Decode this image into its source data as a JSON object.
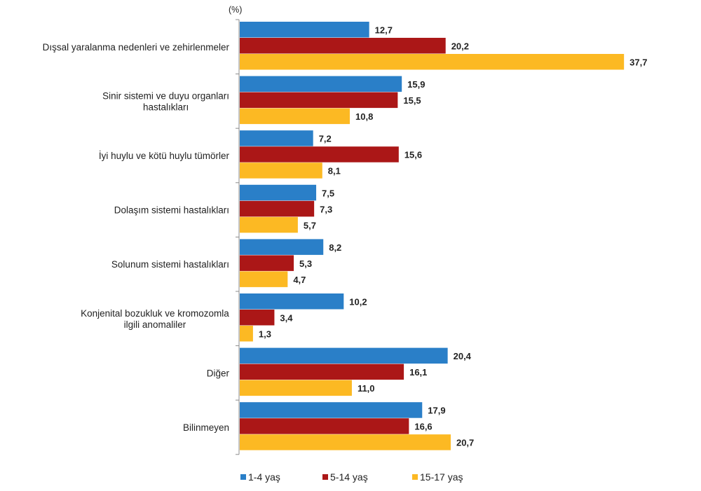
{
  "chart_data": {
    "type": "bar",
    "orientation": "horizontal",
    "title": "",
    "unit_label": "(%)",
    "xlabel": "",
    "ylabel": "",
    "xlim": [
      0,
      40
    ],
    "grid": false,
    "legend_position": "bottom",
    "categories": [
      [
        "Dışsal yaralanma nedenleri ve zehirlenmeler"
      ],
      [
        "Sinir sistemi ve duyu organları",
        "hastalıkları"
      ],
      [
        "İyi huylu ve kötü huylu tümörler"
      ],
      [
        "Dolaşım sistemi hastalıkları"
      ],
      [
        "Solunum sistemi hastalıkları"
      ],
      [
        "Konjenital bozukluk ve kromozomla",
        "ilgili anomaliler"
      ],
      [
        "Diğer"
      ],
      [
        "Bilinmeyen"
      ]
    ],
    "series": [
      {
        "name": "1-4 yaş",
        "color": "#2a7fc8",
        "values": [
          12.7,
          15.9,
          7.2,
          7.5,
          8.2,
          10.2,
          20.4,
          17.9
        ],
        "labels": [
          "12,7",
          "15,9",
          "7,2",
          "7,5",
          "8,2",
          "10,2",
          "20,4",
          "17,9"
        ]
      },
      {
        "name": "5-14 yaş",
        "color": "#ab1717",
        "values": [
          20.2,
          15.5,
          15.6,
          7.3,
          5.3,
          3.4,
          16.1,
          16.6
        ],
        "labels": [
          "20,2",
          "15,5",
          "15,6",
          "7,3",
          "5,3",
          "3,4",
          "16,1",
          "16,6"
        ]
      },
      {
        "name": "15-17 yaş",
        "color": "#fcb923",
        "values": [
          37.7,
          10.8,
          8.1,
          5.7,
          4.7,
          1.3,
          11.0,
          20.7
        ],
        "labels": [
          "37,7",
          "10,8",
          "8,1",
          "5,7",
          "4,7",
          "1,3",
          "11,0",
          "20,7"
        ]
      }
    ]
  }
}
